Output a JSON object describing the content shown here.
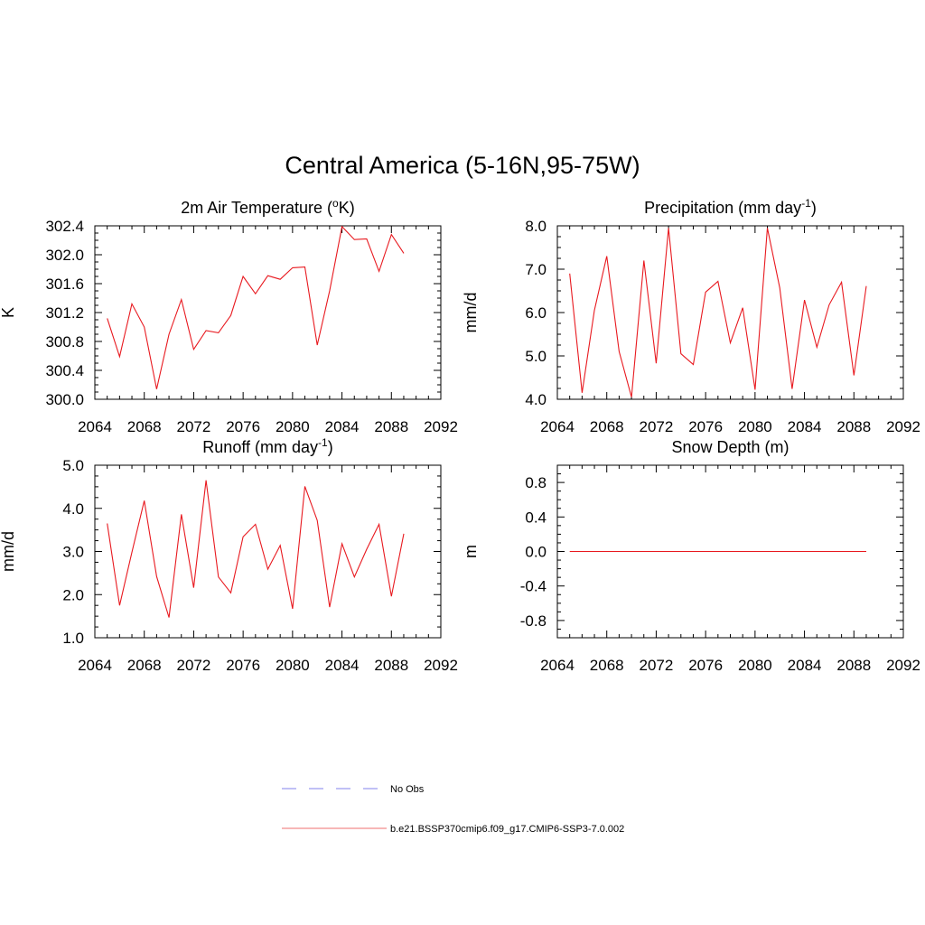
{
  "title": "Central America (5-16N,95-75W)",
  "colors": {
    "series": "#e8191f",
    "obs": "#9b9bf0",
    "model_legend": "#f28c8c"
  },
  "legend": {
    "entries": [
      {
        "label": "No Obs",
        "style": "dashed",
        "color": "#9b9bf0"
      },
      {
        "label": "b.e21.BSSP370cmip6.f09_g17.CMIP6-SSP3-7.0.002",
        "style": "solid",
        "color": "#f28c8c"
      }
    ]
  },
  "chart_data": [
    {
      "type": "line",
      "title": "2m Air Temperature (°K)",
      "title_parts": {
        "pre": "2m Air Temperature (",
        "sup": "o",
        "post": "K)"
      },
      "xlabel": "",
      "ylabel": "K",
      "xlim": [
        2064,
        2092
      ],
      "ylim": [
        300.0,
        302.4
      ],
      "xticks": [
        2064,
        2068,
        2072,
        2076,
        2080,
        2084,
        2088,
        2092
      ],
      "yticks": [
        "300.0",
        "300.4",
        "300.8",
        "301.2",
        "301.6",
        "302.0",
        "302.4"
      ],
      "x": [
        2065,
        2066,
        2067,
        2068,
        2069,
        2070,
        2071,
        2072,
        2073,
        2074,
        2075,
        2076,
        2077,
        2078,
        2079,
        2080,
        2081,
        2082,
        2083,
        2084,
        2085,
        2086,
        2087,
        2088,
        2089
      ],
      "series": [
        {
          "values": [
            301.12,
            300.59,
            301.32,
            301.0,
            300.14,
            300.9,
            301.38,
            300.69,
            300.95,
            300.92,
            301.16,
            301.7,
            301.46,
            301.71,
            301.66,
            301.82,
            301.83,
            300.75,
            301.5,
            302.39,
            302.21,
            302.22,
            301.77,
            302.28,
            302.02
          ]
        }
      ]
    },
    {
      "type": "line",
      "title": "Precipitation (mm day-1)",
      "title_parts": {
        "pre": "Precipitation (mm day",
        "sup": "-1",
        "post": ")"
      },
      "xlabel": "",
      "ylabel": "mm/d",
      "xlim": [
        2064,
        2092
      ],
      "ylim": [
        4.0,
        8.0
      ],
      "xticks": [
        2064,
        2068,
        2072,
        2076,
        2080,
        2084,
        2088,
        2092
      ],
      "yticks": [
        "4.0",
        "5.0",
        "6.0",
        "7.0",
        "8.0"
      ],
      "x": [
        2065,
        2066,
        2067,
        2068,
        2069,
        2070,
        2071,
        2072,
        2073,
        2074,
        2075,
        2076,
        2077,
        2078,
        2079,
        2080,
        2081,
        2082,
        2083,
        2084,
        2085,
        2086,
        2087,
        2088,
        2089
      ],
      "series": [
        {
          "values": [
            6.9,
            4.15,
            6.05,
            7.3,
            5.1,
            4.05,
            7.2,
            4.83,
            7.95,
            5.05,
            4.8,
            6.47,
            6.72,
            5.3,
            6.11,
            4.22,
            7.95,
            6.57,
            4.24,
            6.29,
            5.2,
            6.18,
            6.7,
            4.55,
            6.61
          ]
        }
      ]
    },
    {
      "type": "line",
      "title": "Runoff (mm day-1)",
      "title_parts": {
        "pre": "Runoff (mm day",
        "sup": "-1",
        "post": ")"
      },
      "xlabel": "",
      "ylabel": "mm/d",
      "xlim": [
        2064,
        2092
      ],
      "ylim": [
        1.0,
        5.0
      ],
      "xticks": [
        2064,
        2068,
        2072,
        2076,
        2080,
        2084,
        2088,
        2092
      ],
      "yticks": [
        "1.0",
        "2.0",
        "3.0",
        "4.0",
        "5.0"
      ],
      "x": [
        2065,
        2066,
        2067,
        2068,
        2069,
        2070,
        2071,
        2072,
        2073,
        2074,
        2075,
        2076,
        2077,
        2078,
        2079,
        2080,
        2081,
        2082,
        2083,
        2084,
        2085,
        2086,
        2087,
        2088,
        2089
      ],
      "series": [
        {
          "values": [
            3.65,
            1.75,
            2.98,
            4.18,
            2.42,
            1.47,
            3.86,
            2.16,
            4.65,
            2.41,
            2.04,
            3.34,
            3.63,
            2.59,
            3.14,
            1.67,
            4.51,
            3.72,
            1.71,
            3.18,
            2.41,
            3.05,
            3.63,
            1.96,
            3.41
          ]
        }
      ]
    },
    {
      "type": "line",
      "title": "Snow Depth (m)",
      "title_parts": {
        "pre": "Snow Depth (m)",
        "sup": "",
        "post": ""
      },
      "xlabel": "",
      "ylabel": "m",
      "xlim": [
        2064,
        2092
      ],
      "ylim": [
        -1.0,
        1.0
      ],
      "xticks": [
        2064,
        2068,
        2072,
        2076,
        2080,
        2084,
        2088,
        2092
      ],
      "yticks": [
        "-0.8",
        "-0.4",
        "0.0",
        "0.4",
        "0.8"
      ],
      "x": [
        2065,
        2066,
        2067,
        2068,
        2069,
        2070,
        2071,
        2072,
        2073,
        2074,
        2075,
        2076,
        2077,
        2078,
        2079,
        2080,
        2081,
        2082,
        2083,
        2084,
        2085,
        2086,
        2087,
        2088,
        2089
      ],
      "series": [
        {
          "values": [
            0,
            0,
            0,
            0,
            0,
            0,
            0,
            0,
            0,
            0,
            0,
            0,
            0,
            0,
            0,
            0,
            0,
            0,
            0,
            0,
            0,
            0,
            0,
            0,
            0
          ]
        }
      ]
    }
  ]
}
